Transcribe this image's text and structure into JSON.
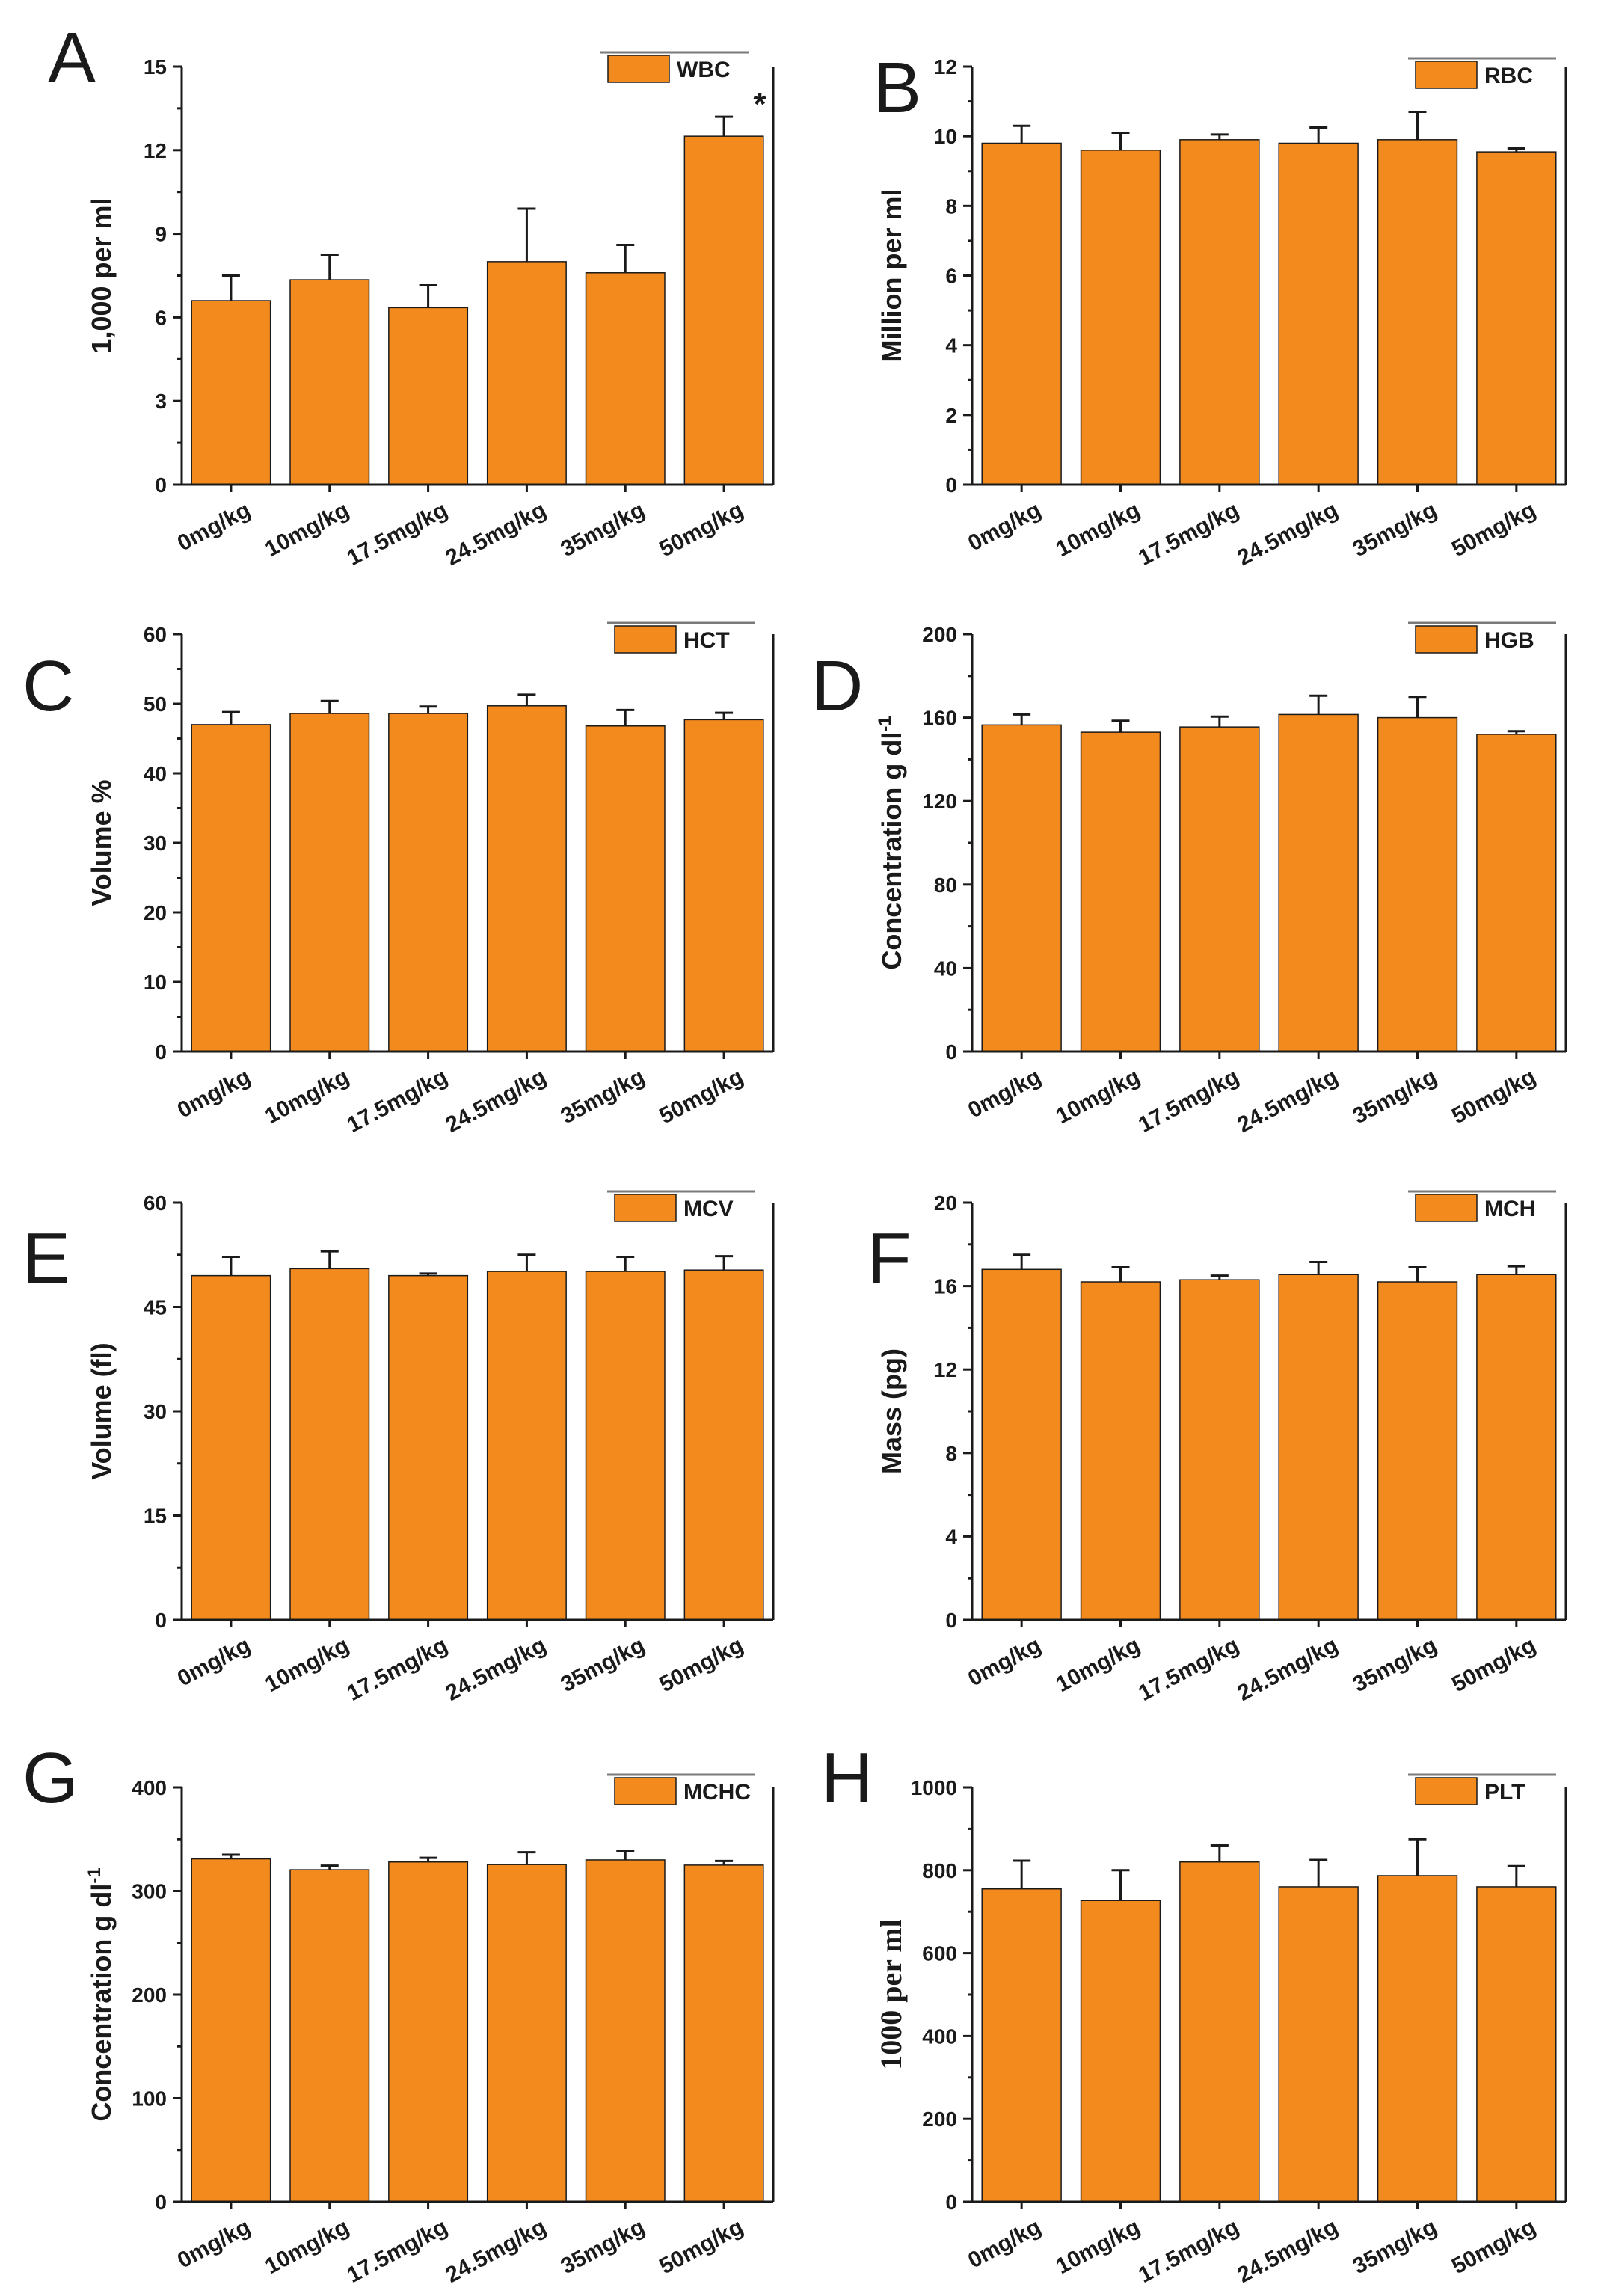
{
  "figure": {
    "categories": [
      "0mg/kg",
      "10mg/kg",
      "17.5mg/kg",
      "24.5mg/kg",
      "35mg/kg",
      "50mg/kg"
    ],
    "bar_color": "#f28a1e"
  },
  "chart_data": [
    {
      "type": "bar",
      "panel": "A",
      "legend": "WBC",
      "ylabel": "1,000 per ml",
      "ylim": [
        0,
        15
      ],
      "yticks": [
        0,
        3,
        6,
        9,
        12,
        15
      ],
      "categories": [
        "0mg/kg",
        "10mg/kg",
        "17.5mg/kg",
        "24.5mg/kg",
        "35mg/kg",
        "50mg/kg"
      ],
      "values": [
        6.6,
        7.35,
        6.35,
        8.0,
        7.6,
        12.5
      ],
      "errors": [
        0.9,
        0.9,
        0.8,
        1.9,
        1.0,
        0.7
      ],
      "annotations": [
        {
          "category": "50mg/kg",
          "text": "*"
        }
      ]
    },
    {
      "type": "bar",
      "panel": "B",
      "legend": "RBC",
      "ylabel": "Million per ml",
      "ylim": [
        0,
        12
      ],
      "yticks": [
        0,
        2,
        4,
        6,
        8,
        10,
        12
      ],
      "categories": [
        "0mg/kg",
        "10mg/kg",
        "17.5mg/kg",
        "24.5mg/kg",
        "35mg/kg",
        "50mg/kg"
      ],
      "values": [
        9.8,
        9.6,
        9.9,
        9.8,
        9.9,
        9.55
      ],
      "errors": [
        0.5,
        0.5,
        0.15,
        0.45,
        0.8,
        0.1
      ]
    },
    {
      "type": "bar",
      "panel": "C",
      "legend": "HCT",
      "ylabel": "Volume %",
      "ylim": [
        0,
        60
      ],
      "yticks": [
        0,
        10,
        20,
        30,
        40,
        50,
        60
      ],
      "categories": [
        "0mg/kg",
        "10mg/kg",
        "17.5mg/kg",
        "24.5mg/kg",
        "35mg/kg",
        "50mg/kg"
      ],
      "values": [
        47,
        48.6,
        48.6,
        49.7,
        46.8,
        47.7
      ],
      "errors": [
        1.8,
        1.8,
        1.0,
        1.6,
        2.3,
        1.0
      ]
    },
    {
      "type": "bar",
      "panel": "D",
      "legend": "HGB",
      "ylabel": "Concentration g dl",
      "ylabel_sup": "-1",
      "ylim": [
        0,
        200
      ],
      "yticks": [
        0,
        40,
        80,
        120,
        160,
        200
      ],
      "categories": [
        "0mg/kg",
        "10mg/kg",
        "17.5mg/kg",
        "24.5mg/kg",
        "35mg/kg",
        "50mg/kg"
      ],
      "values": [
        156.5,
        153,
        155.5,
        161.5,
        160,
        152
      ],
      "errors": [
        5,
        5.5,
        5,
        9,
        10,
        1.5
      ]
    },
    {
      "type": "bar",
      "panel": "E",
      "legend": "MCV",
      "ylabel": "Volume (fl)",
      "ylim": [
        0,
        60
      ],
      "yticks": [
        0,
        15,
        30,
        45,
        60
      ],
      "categories": [
        "0mg/kg",
        "10mg/kg",
        "17.5mg/kg",
        "24.5mg/kg",
        "35mg/kg",
        "50mg/kg"
      ],
      "values": [
        49.5,
        50.5,
        49.5,
        50.1,
        50.1,
        50.3
      ],
      "errors": [
        2.7,
        2.5,
        0.3,
        2.4,
        2.1,
        2.0
      ]
    },
    {
      "type": "bar",
      "panel": "F",
      "legend": "MCH",
      "ylabel": "Mass (pg)",
      "ylim": [
        0,
        20
      ],
      "yticks": [
        0,
        4,
        8,
        12,
        16,
        20
      ],
      "categories": [
        "0mg/kg",
        "10mg/kg",
        "17.5mg/kg",
        "24.5mg/kg",
        "35mg/kg",
        "50mg/kg"
      ],
      "values": [
        16.8,
        16.2,
        16.3,
        16.55,
        16.2,
        16.55
      ],
      "errors": [
        0.7,
        0.7,
        0.2,
        0.6,
        0.7,
        0.4
      ]
    },
    {
      "type": "bar",
      "panel": "G",
      "legend": "MCHC",
      "ylabel": "Concentration g dl",
      "ylabel_sup": "-1",
      "ylim": [
        0,
        400
      ],
      "yticks": [
        0,
        100,
        200,
        300,
        400
      ],
      "categories": [
        "0mg/kg",
        "10mg/kg",
        "17.5mg/kg",
        "24.5mg/kg",
        "35mg/kg",
        "50mg/kg"
      ],
      "values": [
        331,
        320.5,
        328,
        325.5,
        330,
        325
      ],
      "errors": [
        4,
        4,
        4,
        12,
        9,
        4
      ]
    },
    {
      "type": "bar",
      "panel": "H",
      "legend": "PLT",
      "ylabel": "1000     per ml",
      "ylabel_serif": true,
      "ylim": [
        0,
        1000
      ],
      "yticks": [
        0,
        200,
        400,
        600,
        800,
        1000
      ],
      "categories": [
        "0mg/kg",
        "10mg/kg",
        "17.5mg/kg",
        "24.5mg/kg",
        "35mg/kg",
        "50mg/kg"
      ],
      "values": [
        755,
        727,
        820,
        760,
        787,
        760
      ],
      "errors": [
        68,
        73,
        40,
        65,
        88,
        50
      ]
    }
  ]
}
